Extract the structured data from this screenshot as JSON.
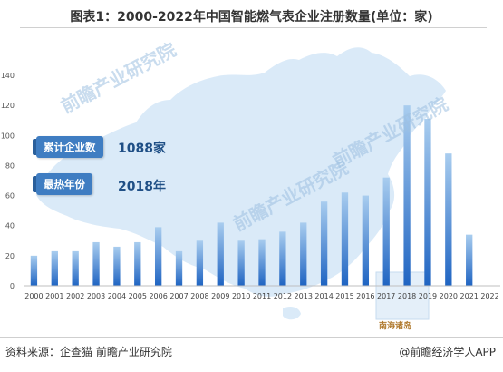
{
  "chart_data": {
    "type": "bar",
    "title": "图表1：2000-2022年中国智能燃气表企业注册数量(单位：家)",
    "categories": [
      "2000",
      "2001",
      "2002",
      "2003",
      "2004",
      "2005",
      "2006",
      "2007",
      "2008",
      "2009",
      "2010",
      "2011",
      "2012",
      "2013",
      "2014",
      "2015",
      "2016",
      "2017",
      "2018",
      "2019",
      "2020",
      "2021",
      "2022"
    ],
    "values": [
      20,
      23,
      23,
      29,
      26,
      29,
      39,
      23,
      30,
      42,
      30,
      31,
      36,
      42,
      56,
      62,
      60,
      72,
      120,
      111,
      88,
      34,
      0
    ],
    "ylim": [
      0,
      140
    ],
    "yticks": [
      "0",
      "20",
      "40",
      "60",
      "80",
      "100",
      "120",
      "140"
    ],
    "grid": false,
    "bar_color_top": "#a9cdef",
    "bar_color_bottom": "#1f64c2"
  },
  "callouts": [
    {
      "label": "累计企业数",
      "value": "1088家"
    },
    {
      "label": "最热年份",
      "value": "2018年"
    }
  ],
  "map_label": "南海诸岛",
  "watermark": "前瞻产业研究院",
  "source": "资料来源：企查猫 前瞻产业研究院",
  "brand": "@前瞻经济学人APP"
}
